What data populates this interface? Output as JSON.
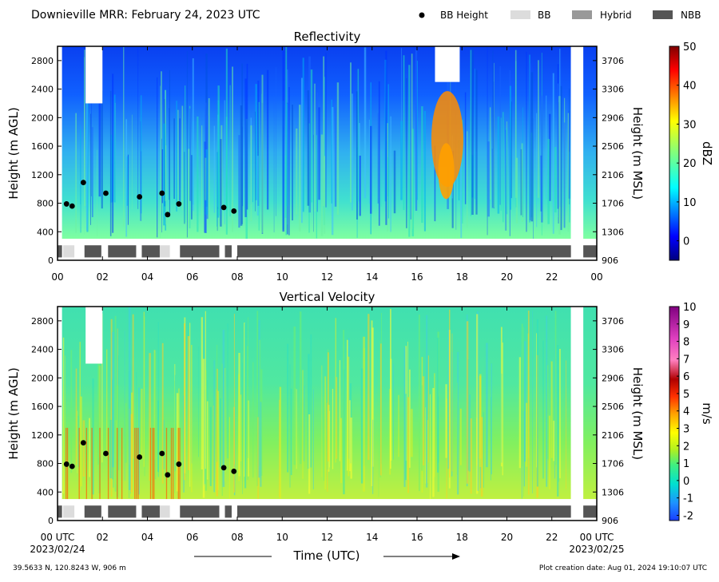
{
  "header": {
    "title": "Downieville MRR:  February 24, 2023 UTC"
  },
  "legend": [
    {
      "label": "BB Height",
      "kind": "dot",
      "color": "#000000"
    },
    {
      "label": "BB",
      "kind": "patch",
      "color": "#dcdcdc"
    },
    {
      "label": "Hybrid",
      "kind": "patch",
      "color": "#999999"
    },
    {
      "label": "NBB",
      "kind": "patch",
      "color": "#555555"
    }
  ],
  "x_axis": {
    "label": "Time (UTC)",
    "ticks": [
      "00",
      "02",
      "04",
      "06",
      "08",
      "10",
      "12",
      "14",
      "16",
      "18",
      "20",
      "22",
      "00"
    ],
    "ticks_bottom": [
      "00 UTC",
      "02",
      "04",
      "06",
      "08",
      "10",
      "12",
      "14",
      "16",
      "18",
      "20",
      "22",
      "00 UTC"
    ],
    "start_date": "2023/02/24",
    "end_date": "2023/02/25"
  },
  "footer": {
    "location": "39.5633 N, 120.8243 W, 906 m",
    "created": "Plot creation date: Aug 01, 2024 19:10:07 UTC"
  },
  "chart_data": [
    {
      "type": "heatmap",
      "title": "Reflectivity",
      "ylabel": "Height (m AGL)",
      "y2label": "Height (m MSL)",
      "xlim": [
        0,
        24
      ],
      "ylim": [
        0,
        3000
      ],
      "yticks": [
        0,
        400,
        800,
        1200,
        1600,
        2000,
        2400,
        2800
      ],
      "y2ticks": [
        "906",
        "1306",
        "1706",
        "2106",
        "2506",
        "2906",
        "3306",
        "3706"
      ],
      "colorbar": {
        "label": "dBZ",
        "range": [
          -5,
          50
        ],
        "ticks": [
          0,
          10,
          20,
          30,
          40,
          50
        ]
      },
      "bright_band_height": {
        "x": [
          0.4,
          0.65,
          1.15,
          2.15,
          3.65,
          4.65,
          4.9,
          5.4,
          7.4,
          7.85
        ],
        "y": [
          790,
          760,
          1090,
          940,
          890,
          940,
          640,
          790,
          740,
          690
        ]
      },
      "band_classification": [
        {
          "class": "NBB",
          "start": 0.0,
          "end": 0.2
        },
        {
          "class": "BB",
          "start": 0.25,
          "end": 0.75
        },
        {
          "class": "NBB",
          "start": 1.2,
          "end": 1.95
        },
        {
          "class": "NBB",
          "start": 2.25,
          "end": 3.5
        },
        {
          "class": "NBB",
          "start": 3.75,
          "end": 4.55
        },
        {
          "class": "BB",
          "start": 4.55,
          "end": 5.0
        },
        {
          "class": "NBB",
          "start": 5.45,
          "end": 7.2
        },
        {
          "class": "NBB",
          "start": 7.45,
          "end": 7.75
        },
        {
          "class": "NBB",
          "start": 8.0,
          "end": 22.85
        },
        {
          "class": "NBB",
          "start": 23.4,
          "end": 24.0
        }
      ]
    },
    {
      "type": "heatmap",
      "title": "Vertical Velocity",
      "ylabel": "Height (m AGL)",
      "y2label": "Height (m MSL)",
      "xlim": [
        0,
        24
      ],
      "ylim": [
        0,
        3000
      ],
      "yticks": [
        0,
        400,
        800,
        1200,
        1600,
        2000,
        2400,
        2800
      ],
      "y2ticks": [
        "906",
        "1306",
        "1706",
        "2106",
        "2506",
        "2906",
        "3306",
        "3706"
      ],
      "colorbar": {
        "label": "m/s",
        "range": [
          -2.3,
          10
        ],
        "ticks": [
          -2,
          -1,
          0,
          1,
          2,
          3,
          4,
          5,
          6,
          7,
          8,
          9,
          10
        ]
      },
      "bright_band_height": {
        "x": [
          0.4,
          0.65,
          1.15,
          2.15,
          3.65,
          4.65,
          4.9,
          5.4,
          7.4,
          7.85
        ],
        "y": [
          790,
          760,
          1090,
          940,
          890,
          940,
          640,
          790,
          740,
          690
        ]
      },
      "band_classification": [
        {
          "class": "NBB",
          "start": 0.0,
          "end": 0.2
        },
        {
          "class": "BB",
          "start": 0.25,
          "end": 0.75
        },
        {
          "class": "NBB",
          "start": 1.2,
          "end": 1.95
        },
        {
          "class": "NBB",
          "start": 2.25,
          "end": 3.5
        },
        {
          "class": "NBB",
          "start": 3.75,
          "end": 4.55
        },
        {
          "class": "BB",
          "start": 4.55,
          "end": 5.0
        },
        {
          "class": "NBB",
          "start": 5.45,
          "end": 7.2
        },
        {
          "class": "NBB",
          "start": 7.45,
          "end": 7.75
        },
        {
          "class": "NBB",
          "start": 8.0,
          "end": 22.85
        },
        {
          "class": "NBB",
          "start": 23.4,
          "end": 24.0
        }
      ]
    }
  ]
}
